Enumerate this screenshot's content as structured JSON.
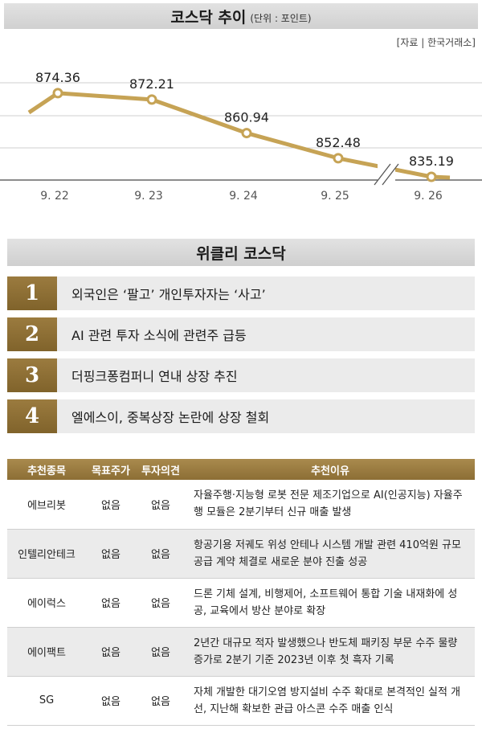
{
  "header": {
    "title": "코스닥 추이",
    "unit": "(단위 : 포인트)",
    "source": "[자료 | 한국거래소]"
  },
  "chart_data": {
    "type": "line",
    "categories": [
      "9. 22",
      "9. 23",
      "9. 24",
      "9. 25",
      "9. 26"
    ],
    "values": [
      874.36,
      872.21,
      860.94,
      852.48,
      835.19
    ],
    "value_labels": [
      "874.36",
      "872.21",
      "860.94",
      "852.48",
      "835.19"
    ],
    "title": "코스닥 추이",
    "unit": "(단위 : 포인트)",
    "axis_break": true,
    "grid": true,
    "line_color": "#c6a355",
    "ylim": [
      843,
      880
    ]
  },
  "weekly": {
    "title": "위클리 코스닥",
    "items": [
      {
        "num": "1",
        "text": "외국인은 ‘팔고’ 개인투자자는 ‘사고’"
      },
      {
        "num": "2",
        "text": "AI 관련 투자 소식에 관련주 급등"
      },
      {
        "num": "3",
        "text": "더핑크퐁컴퍼니 연내 상장 추진"
      },
      {
        "num": "4",
        "text": "엘에스이, 중복상장 논란에 상장 철회"
      }
    ]
  },
  "table": {
    "headers": [
      "추천종목",
      "목표주가",
      "투자의견",
      "추천이유"
    ],
    "rows": [
      {
        "stock": "에브리봇",
        "target": "없음",
        "opinion": "없음",
        "reason": "자율주행·지능형 로봇 전문 제조기업으로 AI(인공지능) 자율주행 모듈은 2분기부터 신규 매출 발생"
      },
      {
        "stock": "인텔리안테크",
        "target": "없음",
        "opinion": "없음",
        "reason": "항공기용 저궤도 위성 안테나 시스템 개발 관련 410억원 규모 공급 계약 체결로 새로운 분야 진출 성공"
      },
      {
        "stock": "에이럭스",
        "target": "없음",
        "opinion": "없음",
        "reason": "드론 기체 설계, 비행제어, 소프트웨어 통합 기술 내재화에 성공, 교육에서 방산 분야로 확장"
      },
      {
        "stock": "에이팩트",
        "target": "없음",
        "opinion": "없음",
        "reason": "2년간 대규모 적자 발생했으나 반도체 패키징 부문 수주 물량 증가로 2분기 기준 2023년 이후 첫 흑자 기록"
      },
      {
        "stock": "SG",
        "target": "없음",
        "opinion": "없음",
        "reason": "자체 개발한 대기오염 방지설비 수주 확대로 본격적인 실적 개선, 지난해 확보한 관급 아스콘 수주 매출 인식"
      }
    ]
  },
  "colors": {
    "gold": "#9b7b3f",
    "header_gray": "#d8d8d8",
    "row_gray": "#ebebeb"
  }
}
